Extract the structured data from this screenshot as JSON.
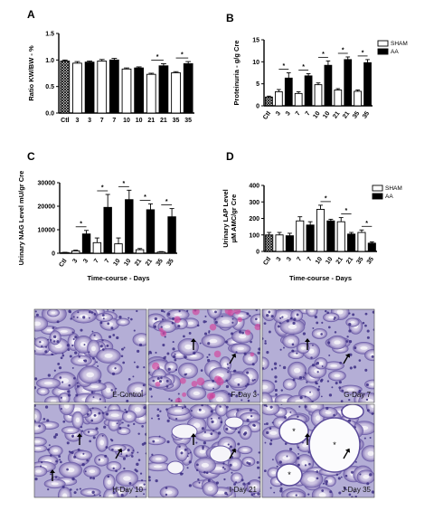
{
  "chart_data": [
    {
      "panel": "A",
      "type": "bar",
      "ylabel": "Ratio KW/BW - %",
      "xlabel": "",
      "ylim": [
        0,
        1.5
      ],
      "yticks": [
        "0.0",
        "0.5",
        "1.0",
        "1.5"
      ],
      "categories": [
        "Ctl",
        "3",
        "3",
        "7",
        "7",
        "10",
        "10",
        "21",
        "21",
        "35",
        "35"
      ],
      "values": [
        0.98,
        0.94,
        0.96,
        0.98,
        1.0,
        0.83,
        0.85,
        0.73,
        0.89,
        0.76,
        0.93
      ],
      "errors": [
        0.02,
        0.03,
        0.02,
        0.03,
        0.03,
        0.02,
        0.02,
        0.02,
        0.04,
        0.02,
        0.04
      ],
      "fills": [
        "hatch",
        "white",
        "black",
        "white",
        "black",
        "white",
        "black",
        "white",
        "black",
        "white",
        "black"
      ],
      "significance": [
        "*",
        "*"
      ]
    },
    {
      "panel": "B",
      "type": "bar",
      "ylabel": "Proteinuria - g/g Cre",
      "xlabel": "",
      "ylim": [
        0,
        15
      ],
      "yticks": [
        "0",
        "5",
        "10",
        "15"
      ],
      "categories": [
        "Ctl",
        "3",
        "3",
        "7",
        "7",
        "10",
        "10",
        "21",
        "21",
        "35",
        "35"
      ],
      "values": [
        2.0,
        3.2,
        6.3,
        2.8,
        6.8,
        4.8,
        9.2,
        3.6,
        10.5,
        3.3,
        9.8
      ],
      "errors": [
        0.2,
        0.5,
        1.2,
        0.4,
        0.5,
        0.4,
        1.0,
        0.3,
        0.6,
        0.3,
        0.7
      ],
      "fills": [
        "hatch",
        "white",
        "black",
        "white",
        "black",
        "white",
        "black",
        "white",
        "black",
        "white",
        "black"
      ],
      "significance": [
        "*",
        "*",
        "*",
        "*",
        "*"
      ],
      "legend": [
        "SHAM",
        "AA"
      ]
    },
    {
      "panel": "C",
      "type": "bar",
      "ylabel": "Urinary NAG Level mU/gr Cre",
      "xlabel": "Time-course - Days",
      "ylim": [
        0,
        30000
      ],
      "yticks": [
        "0",
        "10000",
        "20000",
        "30000"
      ],
      "categories": [
        "Ctl",
        "3",
        "3",
        "7",
        "7",
        "10",
        "10",
        "21",
        "21",
        "35",
        "35"
      ],
      "values": [
        300,
        1000,
        8200,
        4500,
        19500,
        4000,
        22800,
        1500,
        18500,
        500,
        15500
      ],
      "errors": [
        100,
        300,
        1500,
        2000,
        5500,
        2500,
        4000,
        500,
        2500,
        200,
        3500
      ],
      "fills": [
        "hatch",
        "white",
        "black",
        "white",
        "black",
        "white",
        "black",
        "white",
        "black",
        "white",
        "black"
      ],
      "significance": [
        "*",
        "*",
        "*",
        "*",
        "*"
      ]
    },
    {
      "panel": "D",
      "type": "bar",
      "ylabel": "Urinary LAP Level µM AMC/gr Cre",
      "xlabel": "Time-course - Days",
      "ylim": [
        0,
        400
      ],
      "yticks": [
        "0",
        "100",
        "200",
        "300",
        "400"
      ],
      "categories": [
        "Ctl",
        "3",
        "3",
        "7",
        "7",
        "10",
        "10",
        "21",
        "21",
        "35",
        "35"
      ],
      "values": [
        100,
        100,
        95,
        185,
        160,
        255,
        185,
        180,
        105,
        115,
        50
      ],
      "errors": [
        15,
        15,
        15,
        25,
        20,
        25,
        10,
        25,
        10,
        15,
        8
      ],
      "fills": [
        "hatch",
        "white",
        "black",
        "white",
        "black",
        "white",
        "black",
        "white",
        "black",
        "white",
        "black"
      ],
      "significance": [
        "*",
        "*",
        "*"
      ],
      "legend": [
        "SHAM",
        "AA"
      ]
    }
  ],
  "micrographs": [
    {
      "label": "E-Control"
    },
    {
      "label": "F-Day 3"
    },
    {
      "label": "G-Day 7"
    },
    {
      "label": "H-Day 10"
    },
    {
      "label": "I-Day 21"
    },
    {
      "label": "J-Day 35"
    }
  ]
}
